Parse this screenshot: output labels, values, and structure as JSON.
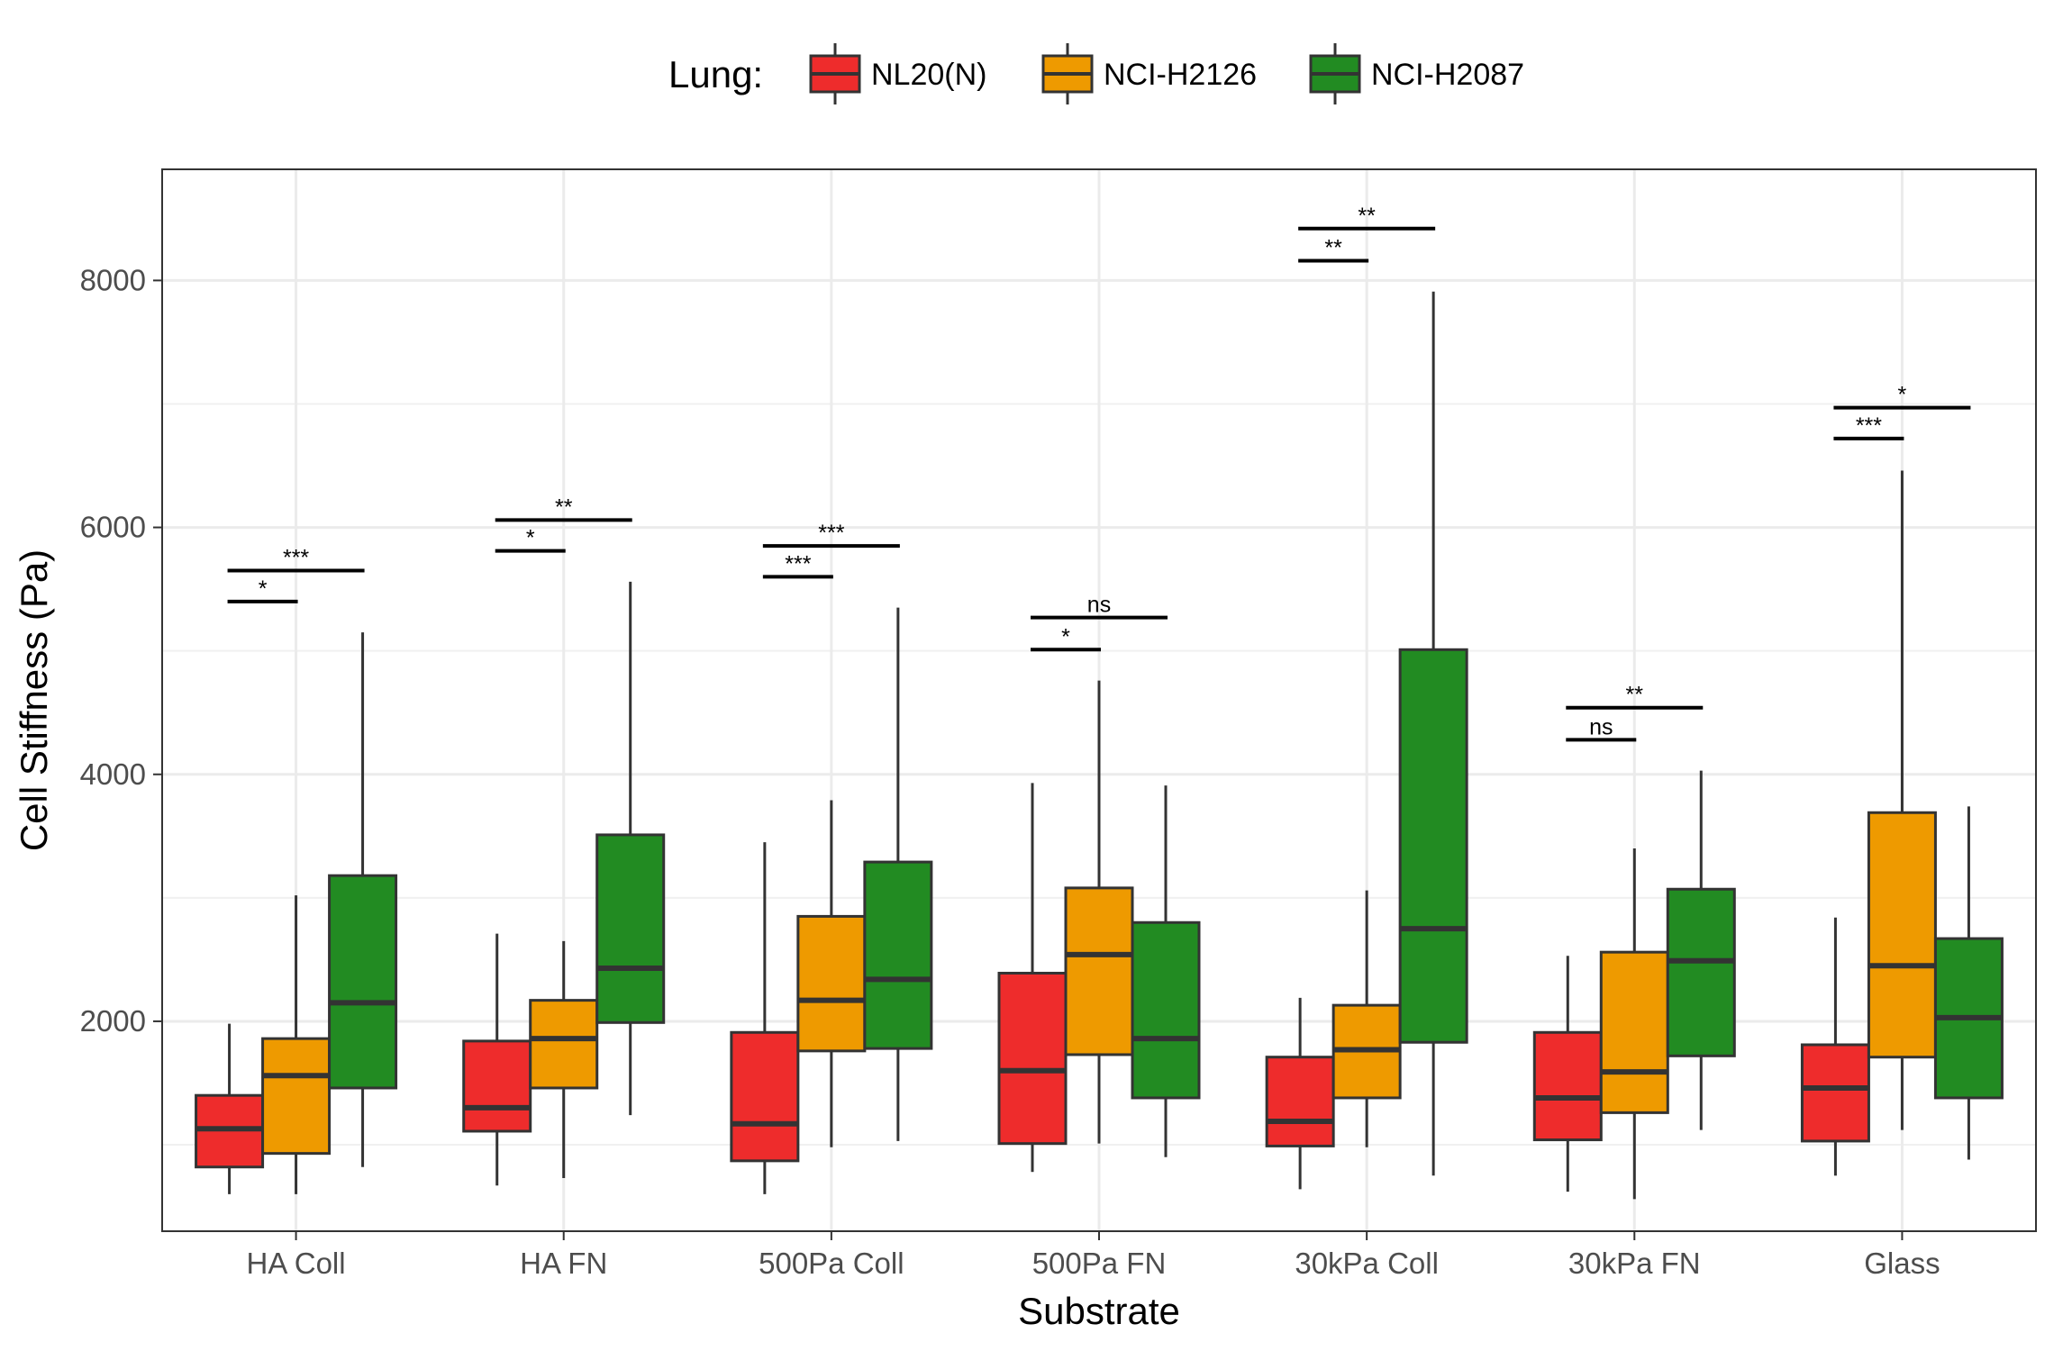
{
  "chart_data": {
    "type": "box",
    "xlabel": "Substrate",
    "ylabel": "Cell Stiffness (Pa)",
    "legend_title": "Lung:",
    "legend_position": "top",
    "ylim": [
      300,
      8900
    ],
    "yticks": [
      2000,
      4000,
      6000,
      8000
    ],
    "grid": true,
    "categories": [
      "HA Coll",
      "HA FN",
      "500Pa Coll",
      "500Pa FN",
      "30kPa Coll",
      "30kPa FN",
      "Glass"
    ],
    "series": [
      {
        "name": "NL20(N)",
        "color": "#EE2C2C",
        "boxes": [
          {
            "min": 600,
            "q1": 820,
            "median": 1130,
            "q3": 1400,
            "max": 1980
          },
          {
            "min": 670,
            "q1": 1110,
            "median": 1300,
            "q3": 1840,
            "max": 2710
          },
          {
            "min": 600,
            "q1": 870,
            "median": 1170,
            "q3": 1910,
            "max": 3450
          },
          {
            "min": 780,
            "q1": 1010,
            "median": 1600,
            "q3": 2390,
            "max": 3930
          },
          {
            "min": 640,
            "q1": 990,
            "median": 1190,
            "q3": 1710,
            "max": 2190
          },
          {
            "min": 620,
            "q1": 1040,
            "median": 1380,
            "q3": 1910,
            "max": 2530
          },
          {
            "min": 750,
            "q1": 1030,
            "median": 1460,
            "q3": 1810,
            "max": 2840
          }
        ]
      },
      {
        "name": "NCI-H2126",
        "color": "#EE9A00",
        "boxes": [
          {
            "min": 600,
            "q1": 930,
            "median": 1560,
            "q3": 1860,
            "max": 3020
          },
          {
            "min": 730,
            "q1": 1460,
            "median": 1860,
            "q3": 2170,
            "max": 2650
          },
          {
            "min": 980,
            "q1": 1760,
            "median": 2170,
            "q3": 2850,
            "max": 3790
          },
          {
            "min": 1010,
            "q1": 1730,
            "median": 2540,
            "q3": 3080,
            "max": 4760
          },
          {
            "min": 980,
            "q1": 1380,
            "median": 1770,
            "q3": 2130,
            "max": 3060
          },
          {
            "min": 560,
            "q1": 1260,
            "median": 1590,
            "q3": 2560,
            "max": 3400
          },
          {
            "min": 1120,
            "q1": 1710,
            "median": 2450,
            "q3": 3690,
            "max": 6460
          }
        ]
      },
      {
        "name": "NCI-H2087",
        "color": "#228B22",
        "boxes": [
          {
            "min": 820,
            "q1": 1460,
            "median": 2150,
            "q3": 3180,
            "max": 5150
          },
          {
            "min": 1240,
            "q1": 1990,
            "median": 2430,
            "q3": 3510,
            "max": 5560
          },
          {
            "min": 1030,
            "q1": 1780,
            "median": 2340,
            "q3": 3290,
            "max": 5350
          },
          {
            "min": 900,
            "q1": 1380,
            "median": 1860,
            "q3": 2800,
            "max": 3910
          },
          {
            "min": 750,
            "q1": 1830,
            "median": 2750,
            "q3": 5010,
            "max": 7910
          },
          {
            "min": 1120,
            "q1": 1720,
            "median": 2490,
            "q3": 3070,
            "max": 4030
          },
          {
            "min": 880,
            "q1": 1380,
            "median": 2030,
            "q3": 2670,
            "max": 3740
          }
        ]
      }
    ],
    "significance": [
      {
        "category": "HA Coll",
        "from": "NL20(N)",
        "to": "NCI-H2126",
        "y": 5400,
        "label": "*"
      },
      {
        "category": "HA Coll",
        "from": "NL20(N)",
        "to": "NCI-H2087",
        "y": 5650,
        "label": "***"
      },
      {
        "category": "HA FN",
        "from": "NL20(N)",
        "to": "NCI-H2126",
        "y": 5810,
        "label": "*"
      },
      {
        "category": "HA FN",
        "from": "NL20(N)",
        "to": "NCI-H2087",
        "y": 6060,
        "label": "**"
      },
      {
        "category": "500Pa Coll",
        "from": "NL20(N)",
        "to": "NCI-H2126",
        "y": 5600,
        "label": "***"
      },
      {
        "category": "500Pa Coll",
        "from": "NL20(N)",
        "to": "NCI-H2087",
        "y": 5850,
        "label": "***"
      },
      {
        "category": "500Pa FN",
        "from": "NL20(N)",
        "to": "NCI-H2126",
        "y": 5010,
        "label": "*"
      },
      {
        "category": "500Pa FN",
        "from": "NL20(N)",
        "to": "NCI-H2087",
        "y": 5270,
        "label": "ns"
      },
      {
        "category": "30kPa Coll",
        "from": "NL20(N)",
        "to": "NCI-H2126",
        "y": 8160,
        "label": "**"
      },
      {
        "category": "30kPa Coll",
        "from": "NL20(N)",
        "to": "NCI-H2087",
        "y": 8420,
        "label": "**"
      },
      {
        "category": "30kPa FN",
        "from": "NL20(N)",
        "to": "NCI-H2126",
        "y": 4280,
        "label": "ns"
      },
      {
        "category": "30kPa FN",
        "from": "NL20(N)",
        "to": "NCI-H2087",
        "y": 4540,
        "label": "**"
      },
      {
        "category": "Glass",
        "from": "NL20(N)",
        "to": "NCI-H2126",
        "y": 6720,
        "label": "***"
      },
      {
        "category": "Glass",
        "from": "NL20(N)",
        "to": "NCI-H2087",
        "y": 6970,
        "label": "*"
      }
    ]
  }
}
